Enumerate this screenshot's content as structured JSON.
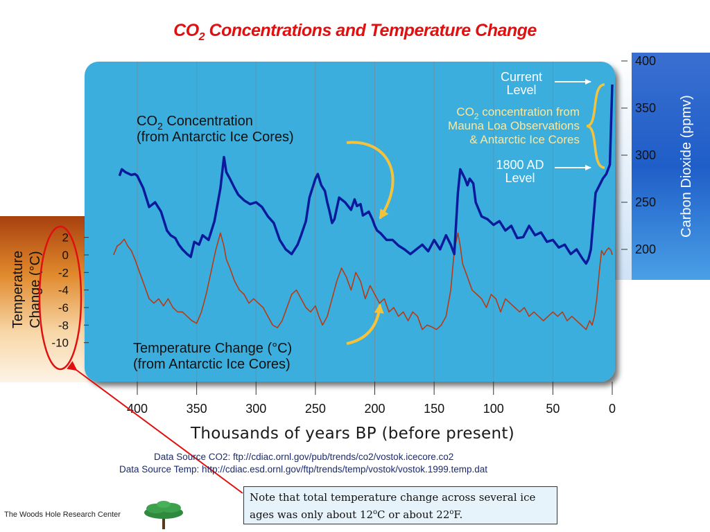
{
  "title": {
    "main": "CO",
    "sub": "2",
    "rest": " Concentrations and Temperature Change"
  },
  "colors": {
    "title": "#e01010",
    "panel": "#3aaede",
    "co2_line": "#0a1a9a",
    "temp_line": "#b83a12",
    "callout_arrow": "#f5c33b",
    "bracket": "#f5c33b",
    "ellipse": "#e01010"
  },
  "annotations": {
    "co2_label_line1_a": "CO",
    "co2_label_line1_sub": "2",
    "co2_label_line1_b": " Concentration",
    "co2_label_line2": "(from Antarctic Ice Cores)",
    "temp_label_line1": "Temperature Change (°C)",
    "temp_label_line2": "(from Antarctic Ice Cores)",
    "current_level_1": "Current",
    "current_level_2": "Level",
    "mauna_1_a": "CO",
    "mauna_1_sub": "2",
    "mauna_1_b": "  concentration from",
    "mauna_2": "Mauna Loa Observations",
    "mauna_3": "& Antarctic Ice Cores",
    "ad1800_1": "1800 AD",
    "ad1800_2": "Level"
  },
  "axes": {
    "left_title_1": "Temperature",
    "left_title_2": "Change  (°C)",
    "right_title": "Carbon Dioxide (ppmv)",
    "x_title": "Thousands of years BP (before present)"
  },
  "sources": {
    "co2": "Data Source CO2: ftp://cdiac.ornl.gov/pub/trends/co2/vostok.icecore.co2",
    "temp": "Data Source Temp: http://cdiac.esd.ornl.gov/ftp/trends/temp/vostok/vostok.1999.temp.dat"
  },
  "note": {
    "text_a": "Note that total temperature change across several ice ages was only about 12",
    "sup1": "o",
    "text_b": "C or about 22",
    "sup2": "o",
    "text_c": "F."
  },
  "footer": {
    "organization": "The Woods Hole Research Center",
    "logo": "tree-logo"
  },
  "chart_data": {
    "type": "line",
    "title": "CO2 Concentrations and Temperature Change",
    "xlabel": "Thousands of years BP (before present)",
    "ylabel_left": "Temperature Change (°C)",
    "ylabel_right": "Carbon Dioxide (ppmv)",
    "x_reversed": true,
    "xlim": [
      420,
      0
    ],
    "y_left_lim": [
      -11,
      3
    ],
    "y_right_lim": [
      175,
      405
    ],
    "x_ticks": [
      400,
      350,
      300,
      250,
      200,
      150,
      100,
      50,
      0
    ],
    "y_left_ticks": [
      2,
      0,
      -2,
      -4,
      -6,
      -8,
      -10
    ],
    "y_right_ticks": [
      400,
      350,
      300,
      250,
      200
    ],
    "grid": "vertical",
    "series": [
      {
        "name": "CO2 Concentration (from Antarctic Ice Cores)",
        "axis": "right",
        "x": [
          415,
          413,
          410,
          405,
          402,
          400,
          395,
          390,
          385,
          380,
          375,
          372,
          368,
          365,
          362,
          358,
          355,
          352,
          348,
          345,
          340,
          335,
          330,
          327,
          325,
          322,
          318,
          315,
          310,
          305,
          300,
          295,
          290,
          285,
          280,
          275,
          270,
          265,
          262,
          258,
          255,
          250,
          248,
          245,
          242,
          240,
          238,
          236,
          234,
          230,
          225,
          220,
          217,
          215,
          212,
          210,
          205,
          202,
          200,
          198,
          195,
          190,
          185,
          180,
          175,
          170,
          165,
          160,
          155,
          150,
          145,
          140,
          136,
          133,
          130,
          128,
          126,
          124,
          122,
          120,
          117,
          115,
          110,
          105,
          100,
          95,
          90,
          85,
          80,
          75,
          70,
          65,
          60,
          55,
          50,
          45,
          40,
          35,
          30,
          25,
          22,
          20,
          18,
          16,
          14,
          12,
          10,
          8,
          5,
          2,
          0
        ],
        "y": [
          278,
          285,
          282,
          279,
          280,
          278,
          265,
          245,
          250,
          240,
          220,
          215,
          212,
          205,
          200,
          195,
          192,
          208,
          205,
          215,
          210,
          230,
          265,
          298,
          282,
          275,
          265,
          258,
          252,
          248,
          250,
          245,
          235,
          228,
          210,
          200,
          195,
          205,
          215,
          230,
          255,
          275,
          280,
          268,
          262,
          250,
          240,
          228,
          232,
          255,
          250,
          242,
          253,
          246,
          248,
          236,
          240,
          232,
          225,
          220,
          217,
          210,
          210,
          204,
          200,
          195,
          200,
          205,
          198,
          210,
          200,
          215,
          205,
          195,
          260,
          285,
          280,
          275,
          268,
          275,
          270,
          250,
          235,
          232,
          226,
          230,
          220,
          225,
          212,
          213,
          225,
          215,
          218,
          208,
          210,
          202,
          205,
          195,
          200,
          190,
          185,
          190,
          200,
          230,
          260,
          265,
          270,
          275,
          280,
          290,
          375
        ]
      },
      {
        "name": "Temperature Change (from Antarctic Ice Cores)",
        "axis": "left",
        "x": [
          420,
          417,
          414,
          411,
          408,
          405,
          402,
          398,
          394,
          390,
          386,
          382,
          378,
          374,
          370,
          366,
          362,
          358,
          354,
          350,
          346,
          342,
          338,
          334,
          330,
          327,
          325,
          322,
          318,
          314,
          310,
          306,
          302,
          298,
          294,
          290,
          286,
          282,
          278,
          274,
          270,
          266,
          262,
          258,
          254,
          250,
          247,
          244,
          240,
          236,
          232,
          228,
          224,
          220,
          216,
          212,
          208,
          204,
          200,
          196,
          192,
          188,
          184,
          180,
          176,
          172,
          168,
          164,
          160,
          156,
          152,
          148,
          144,
          140,
          136,
          133,
          130,
          128,
          126,
          122,
          118,
          114,
          110,
          106,
          102,
          98,
          94,
          90,
          86,
          82,
          78,
          74,
          70,
          66,
          62,
          58,
          54,
          50,
          46,
          42,
          38,
          34,
          30,
          26,
          22,
          19,
          17,
          15,
          13,
          11,
          9,
          7,
          5,
          3,
          1,
          0
        ],
        "y": [
          0.0,
          1.0,
          1.3,
          1.8,
          1.0,
          0.5,
          -0.5,
          -2.0,
          -3.5,
          -5.0,
          -5.5,
          -5.0,
          -5.8,
          -5.0,
          -6.0,
          -6.5,
          -6.5,
          -7.0,
          -7.5,
          -7.8,
          -6.5,
          -4.5,
          -2.0,
          0.5,
          2.5,
          1.0,
          -0.5,
          -1.5,
          -3.0,
          -4.0,
          -4.5,
          -5.5,
          -5.0,
          -5.5,
          -6.0,
          -7.0,
          -8.0,
          -8.3,
          -7.5,
          -6.0,
          -4.5,
          -4.0,
          -5.0,
          -6.0,
          -6.5,
          -5.8,
          -7.0,
          -8.0,
          -7.0,
          -5.0,
          -3.0,
          -1.5,
          -2.5,
          -4.0,
          -2.0,
          -3.0,
          -5.0,
          -3.5,
          -4.5,
          -5.5,
          -5.0,
          -6.5,
          -6.0,
          -7.0,
          -6.5,
          -7.5,
          -6.5,
          -7.0,
          -8.5,
          -8.0,
          -8.2,
          -8.5,
          -8.0,
          -7.0,
          -4.0,
          0.5,
          2.5,
          1.0,
          -1.0,
          -2.5,
          -4.0,
          -4.5,
          -5.0,
          -6.0,
          -4.5,
          -5.0,
          -6.5,
          -5.0,
          -5.5,
          -6.0,
          -6.5,
          -6.0,
          -7.0,
          -6.5,
          -7.0,
          -7.5,
          -7.0,
          -6.5,
          -7.0,
          -6.5,
          -7.5,
          -7.0,
          -7.5,
          -8.0,
          -8.5,
          -7.5,
          -8.0,
          -7.0,
          -5.0,
          -2.0,
          0.5,
          0.0,
          0.5,
          0.8,
          0.5,
          0.0
        ]
      }
    ]
  }
}
